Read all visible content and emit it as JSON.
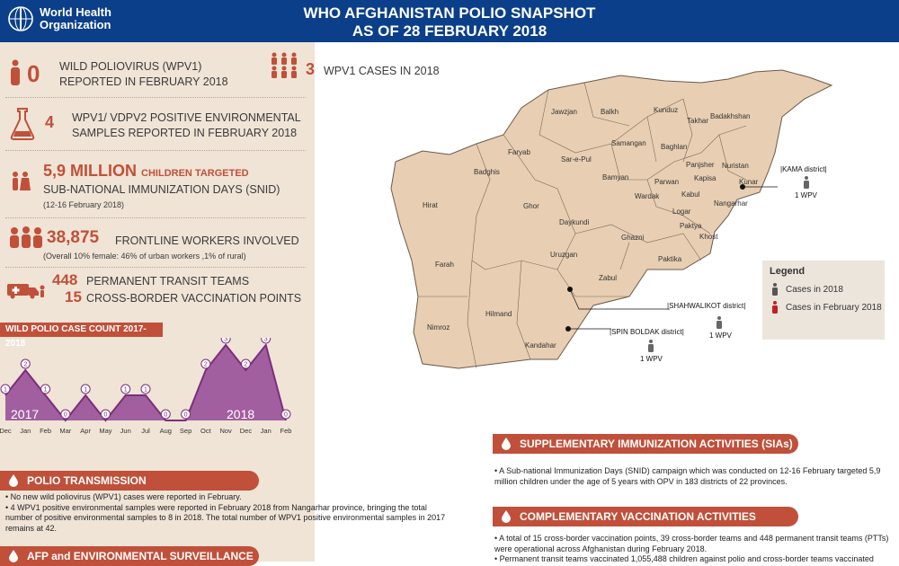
{
  "header": {
    "org_line1": "World Health",
    "org_line2": "Organization",
    "title_line1": "WHO AFGHANISTAN POLIO SNAPSHOT",
    "title_line2": "AS OF 28 FEBRUARY 2018"
  },
  "stats": {
    "wpv1_feb_num": "0",
    "wpv1_feb_l1": "WILD POLIOVIRUS (WPV1)",
    "wpv1_feb_l2": "REPORTED IN FEBRUARY 2018",
    "cases_num": "3",
    "cases_label": "WPV1 CASES IN 2018",
    "env_num": "4",
    "env_l1": "WPV1/ VDPV2 POSITIVE ENVIRONMENTAL",
    "env_l2": "SAMPLES REPORTED IN FEBRUARY 2018",
    "snid_num": "5,9 MILLION",
    "snid_sub": "CHILDREN TARGETED",
    "snid_l2": "SUB-NATIONAL IMMUNIZATION DAYS (SNID)",
    "snid_dates": "(12-16 February 2018)",
    "workers_num": "38,875",
    "workers_label": "FRONTLINE WORKERS INVOLVED",
    "workers_note": "(Overall 10% female: 46% of urban workers ,1% of rural)",
    "ptt_num": "448",
    "ptt_label": "PERMANENT TRANSIT TEAMS",
    "cbv_num": "15",
    "cbv_label": "CROSS-BORDER VACCINATION POINTS"
  },
  "chart_title": "WILD POLIO CASE COUNT 2017-2018",
  "chart_data": {
    "type": "area",
    "categories": [
      "Dec",
      "Jan",
      "Feb",
      "Mar",
      "Apr",
      "May",
      "Jun",
      "Jul",
      "Aug",
      "Sep",
      "Oct",
      "Nov",
      "Dec",
      "Jan",
      "Feb"
    ],
    "values": [
      1,
      2,
      1,
      0,
      1,
      0,
      1,
      1,
      0,
      0,
      2,
      3,
      2,
      3,
      0
    ],
    "year_labels": [
      "2017",
      "2018"
    ]
  },
  "transmission": {
    "title": "POLIO TRANSMISSION",
    "p1": "• No new wild poliovirus (WPV1) cases were reported in February.",
    "p2": "• 4 WPV1 positive environmental samples were reported in February 2018 from Nangarhar province, bringing the total number of positive environmental samples to 8 in 2018. The total number of WPV1 positive environmental samples in 2017 remains at 42."
  },
  "afp": {
    "title": "AFP and ENVIRONMENTAL SURVEILLANCE"
  },
  "sia": {
    "title": "SUPPLEMENTARY IMMUNIZATION ACTIVITIES (SIAs)",
    "p1": "• A Sub-national Immunization Days (SNID) campaign which was conducted on 12-16 February targeted 5,9 million children under the age of 5 years with OPV in 183 districts of 22 provinces."
  },
  "cva": {
    "title": "COMPLEMENTARY VACCINATION ACTIVITIES",
    "p1": "• A total of 15 cross-border vaccination points, 39 cross-border teams and 448 permanent transit teams (PTTs) were operational across Afghanistan during February 2018.",
    "p2": "• Permanent transit teams vaccinated 1,055,488 children against polio and cross-border teams vaccinated"
  },
  "map": {
    "provinces": [
      "Jawzjan",
      "Balkh",
      "Kunduz",
      "Takhar",
      "Badakhshan",
      "Faryab",
      "Samangan",
      "Baghlan",
      "Sar-e-Pul",
      "Nuristan",
      "Panjsher",
      "Kunar",
      "Badghis",
      "Bamyan",
      "Parwan",
      "Kapisa",
      "Wardak",
      "Kabul",
      "Nangarhar",
      "Hirat",
      "Ghor",
      "Daykundi",
      "Logar",
      "Paktya",
      "Khost",
      "Ghazni",
      "Paktika",
      "Uruzgan",
      "Zabul",
      "Farah",
      "Hilmand",
      "Nimroz",
      "Kandahar"
    ],
    "districts": {
      "kama": "|KAMA district|",
      "kama_case": "1 WPV",
      "shah": "|SHAHWALIKOT district|",
      "shah_case": "1 WPV",
      "spin": "|SPIN BOLDAK district|",
      "spin_case": "1 WPV"
    }
  },
  "legend": {
    "title": "Legend",
    "item1": "Cases in 2018",
    "item2": "Cases in February 2018"
  },
  "colors": {
    "accent": "#c0503a",
    "header": "#0b3f8a",
    "panel": "#f0e4d6",
    "map_fill": "#e8ceb2",
    "chart_fill": "#a25fa0"
  }
}
